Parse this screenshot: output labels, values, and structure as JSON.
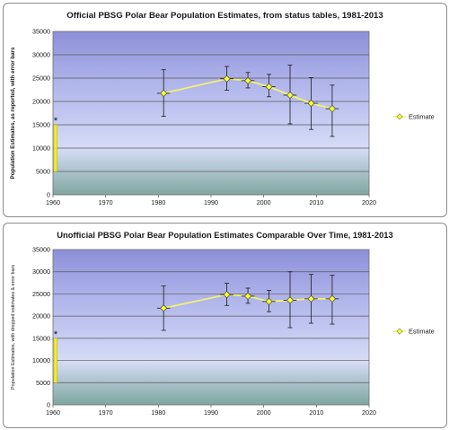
{
  "chart_data": [
    {
      "type": "scatter",
      "title": "Official PBSG Polar Bear Population Estimates, from status tables, 1981-2013",
      "ylabel": "Population Estimates, as reported, with error bars",
      "xlabel": "",
      "xlim": [
        1960,
        2020
      ],
      "ylim": [
        0,
        35000
      ],
      "xticks": [
        "1960",
        "1970",
        "1980",
        "1990",
        "2000",
        "2010",
        "2020"
      ],
      "yticks": [
        "0",
        "5000",
        "10000",
        "15000",
        "20000",
        "25000",
        "30000",
        "35000"
      ],
      "grid": true,
      "legend_position": "right",
      "series": [
        {
          "name": "Estimate",
          "x": [
            1981,
            1993,
            1997,
            2001,
            2005,
            2009,
            2013
          ],
          "y": [
            21750,
            24850,
            24450,
            23150,
            21350,
            19600,
            18450
          ],
          "y_error_low": [
            16800,
            22400,
            22900,
            21000,
            15200,
            14000,
            12500
          ],
          "y_error_high": [
            26800,
            27500,
            26200,
            25800,
            27800,
            25100,
            23500
          ],
          "x_error": [
            1,
            1,
            1,
            1,
            1,
            1,
            1
          ]
        }
      ],
      "bar_1960": {
        "x": 1960,
        "low": 5000,
        "high": 15000
      },
      "annotation": "*",
      "colors": {
        "marker": "#ffff33",
        "line": "#f4f070",
        "bar": "#f5ec1e"
      }
    },
    {
      "type": "scatter",
      "title": "Unofficial PBSG Polar Bear Population Estimates Comparable Over Time, 1981-2013",
      "ylabel": "Population Estimates, with dropped estimates & error bars",
      "xlabel": "",
      "xlim": [
        1960,
        2020
      ],
      "ylim": [
        0,
        35000
      ],
      "xticks": [
        "1960",
        "1970",
        "1980",
        "1990",
        "2000",
        "2010",
        "2020"
      ],
      "yticks": [
        "0",
        "5000",
        "10000",
        "15000",
        "20000",
        "25000",
        "30000",
        "35000"
      ],
      "grid": true,
      "legend_position": "right",
      "series": [
        {
          "name": "Estimate",
          "x": [
            1981,
            1993,
            1997,
            2001,
            2005,
            2009,
            2013
          ],
          "y": [
            21800,
            24850,
            24500,
            23300,
            23600,
            23900,
            23900
          ],
          "y_error_low": [
            16800,
            22400,
            22900,
            21000,
            17400,
            18400,
            18200
          ],
          "y_error_high": [
            26800,
            27400,
            26300,
            25800,
            30000,
            29400,
            29200
          ],
          "x_error": [
            1,
            1,
            1,
            1,
            1,
            1,
            1
          ]
        }
      ],
      "bar_1960": {
        "x": 1960,
        "low": 5000,
        "high": 15000
      },
      "annotation": "*",
      "colors": {
        "marker": "#ffff33",
        "line": "#f4f070",
        "bar": "#f5ec1e"
      }
    }
  ]
}
